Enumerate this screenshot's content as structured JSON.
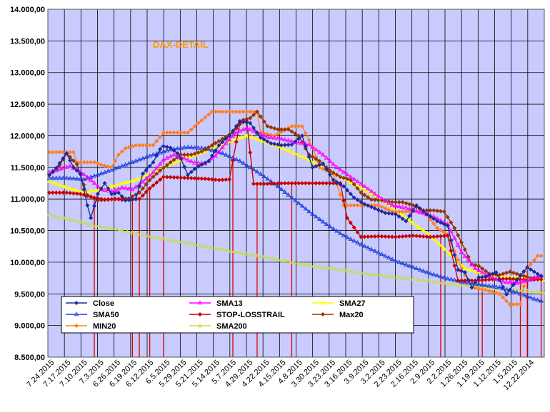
{
  "chart_data": {
    "type": "line",
    "title": "DAX-DETAIL",
    "ylim": [
      8500,
      14000
    ],
    "y_ticks": [
      "14.000,00",
      "13.500,00",
      "13.000,00",
      "12.500,00",
      "12.000,00",
      "11.500,00",
      "11.000,00",
      "10.500,00",
      "10.000,00",
      "9.500,00",
      "9.000,00",
      "8.500,00"
    ],
    "y_tick_values": [
      14000,
      13500,
      13000,
      12500,
      12000,
      11500,
      11000,
      10500,
      10000,
      9500,
      9000,
      8500
    ],
    "x_ticks": [
      "7.24.2015",
      "7.17.2015",
      "7.10.2015",
      "7.3.2015",
      "6.26.2015",
      "6.19.2015",
      "6.12.2015",
      "6.5.2015",
      "5.29.2015",
      "5.21.2015",
      "5.14.2015",
      "5.7.2015",
      "4.29.2015",
      "4.22.2015",
      "4.15.2015",
      "4.8.2015",
      "3.30.2015",
      "3.23.2015",
      "3.16.2015",
      "3.9.2015",
      "3.2.2015",
      "2.23.2015",
      "2.16.2015",
      "2.9.2015",
      "2.2.2015",
      "1.26.2015",
      "1.19.2015",
      "1.12.2015",
      "1.5.2015",
      "12.22.2014"
    ],
    "x_count": 150,
    "grid": true,
    "legend_position": "bottom-left",
    "series": [
      {
        "name": "Close",
        "color": "#1f2a9e",
        "marker": "diamond",
        "keys": [
          [
            0,
            11380
          ],
          [
            4,
            11490
          ],
          [
            10,
            11720
          ],
          [
            14,
            11500
          ],
          [
            18,
            11400
          ],
          [
            22,
            10900
          ],
          [
            24,
            10700
          ],
          [
            28,
            11080
          ],
          [
            32,
            11250
          ],
          [
            36,
            11080
          ],
          [
            40,
            11100
          ],
          [
            44,
            10980
          ],
          [
            50,
            11000
          ],
          [
            54,
            11400
          ],
          [
            60,
            11580
          ],
          [
            65,
            11840
          ],
          [
            70,
            11810
          ],
          [
            75,
            11700
          ],
          [
            80,
            11380
          ],
          [
            85,
            11500
          ],
          [
            92,
            11600
          ],
          [
            98,
            11850
          ],
          [
            104,
            12000
          ],
          [
            110,
            12230
          ],
          [
            116,
            12200
          ],
          [
            122,
            11970
          ],
          [
            128,
            11880
          ],
          [
            134,
            11850
          ],
          [
            140,
            11860
          ],
          [
            146,
            12000
          ],
          [
            152,
            11500
          ],
          [
            158,
            11560
          ],
          [
            164,
            11300
          ],
          [
            170,
            11200
          ],
          [
            176,
            11020
          ],
          [
            182,
            10920
          ],
          [
            188,
            10850
          ],
          [
            194,
            10780
          ],
          [
            200,
            10760
          ],
          [
            206,
            10650
          ],
          [
            212,
            10900
          ],
          [
            218,
            10760
          ],
          [
            224,
            10650
          ],
          [
            230,
            10580
          ],
          [
            236,
            9880
          ],
          [
            240,
            9840
          ],
          [
            244,
            9600
          ],
          [
            248,
            9760
          ],
          [
            252,
            9770
          ],
          [
            258,
            9840
          ],
          [
            264,
            9490
          ],
          [
            270,
            9720
          ],
          [
            276,
            9920
          ],
          [
            280,
            9850
          ],
          [
            285,
            9760
          ]
        ]
      },
      {
        "name": "SMA13",
        "color": "#ff00ff",
        "marker": "triangle",
        "keys": [
          [
            0,
            11420
          ],
          [
            6,
            11470
          ],
          [
            12,
            11520
          ],
          [
            18,
            11430
          ],
          [
            24,
            11300
          ],
          [
            30,
            11150
          ],
          [
            36,
            11120
          ],
          [
            42,
            11180
          ],
          [
            48,
            11150
          ],
          [
            54,
            11270
          ],
          [
            60,
            11420
          ],
          [
            66,
            11620
          ],
          [
            72,
            11700
          ],
          [
            78,
            11640
          ],
          [
            84,
            11570
          ],
          [
            90,
            11560
          ],
          [
            96,
            11680
          ],
          [
            102,
            11880
          ],
          [
            108,
            12050
          ],
          [
            114,
            12120
          ],
          [
            120,
            12050
          ],
          [
            126,
            11980
          ],
          [
            134,
            11950
          ],
          [
            142,
            11900
          ],
          [
            150,
            11860
          ],
          [
            158,
            11700
          ],
          [
            166,
            11500
          ],
          [
            174,
            11350
          ],
          [
            182,
            11200
          ],
          [
            190,
            11040
          ],
          [
            198,
            10900
          ],
          [
            206,
            10860
          ],
          [
            214,
            10790
          ],
          [
            222,
            10720
          ],
          [
            230,
            10600
          ],
          [
            238,
            10160
          ],
          [
            246,
            9900
          ],
          [
            254,
            9780
          ],
          [
            262,
            9690
          ],
          [
            270,
            9670
          ],
          [
            278,
            9730
          ],
          [
            285,
            9800
          ]
        ]
      },
      {
        "name": "SMA27",
        "color": "#ffff00",
        "marker": "triangle",
        "keys": [
          [
            0,
            11280
          ],
          [
            10,
            11180
          ],
          [
            20,
            11100
          ],
          [
            30,
            11150
          ],
          [
            40,
            11230
          ],
          [
            50,
            11300
          ],
          [
            60,
            11420
          ],
          [
            70,
            11550
          ],
          [
            80,
            11660
          ],
          [
            90,
            11750
          ],
          [
            100,
            11860
          ],
          [
            108,
            11950
          ],
          [
            114,
            12000
          ],
          [
            122,
            11930
          ],
          [
            130,
            11850
          ],
          [
            140,
            11740
          ],
          [
            150,
            11620
          ],
          [
            160,
            11460
          ],
          [
            170,
            11320
          ],
          [
            180,
            11180
          ],
          [
            190,
            11020
          ],
          [
            200,
            10820
          ],
          [
            210,
            10620
          ],
          [
            220,
            10420
          ],
          [
            230,
            10160
          ],
          [
            240,
            9900
          ],
          [
            250,
            9820
          ],
          [
            260,
            9760
          ],
          [
            270,
            9760
          ],
          [
            280,
            9740
          ],
          [
            285,
            9720
          ]
        ]
      },
      {
        "name": "SMA50",
        "color": "#1f3fdd",
        "marker": "triangle",
        "keys": [
          [
            0,
            11330
          ],
          [
            10,
            11330
          ],
          [
            20,
            11310
          ],
          [
            30,
            11400
          ],
          [
            40,
            11500
          ],
          [
            50,
            11600
          ],
          [
            60,
            11700
          ],
          [
            70,
            11780
          ],
          [
            80,
            11820
          ],
          [
            90,
            11800
          ],
          [
            100,
            11720
          ],
          [
            110,
            11600
          ],
          [
            120,
            11430
          ],
          [
            130,
            11240
          ],
          [
            140,
            11020
          ],
          [
            150,
            10800
          ],
          [
            160,
            10600
          ],
          [
            170,
            10420
          ],
          [
            180,
            10280
          ],
          [
            190,
            10150
          ],
          [
            200,
            10020
          ],
          [
            210,
            9920
          ],
          [
            220,
            9820
          ],
          [
            230,
            9740
          ],
          [
            240,
            9680
          ],
          [
            250,
            9640
          ],
          [
            260,
            9600
          ],
          [
            270,
            9520
          ],
          [
            280,
            9420
          ],
          [
            285,
            9380
          ]
        ]
      },
      {
        "name": "STOP-LOSSTRAIL",
        "color": "#cc0000",
        "marker": "diamond",
        "keys": [
          [
            0,
            11100
          ],
          [
            10,
            11100
          ],
          [
            18,
            11080
          ],
          [
            26,
            11020
          ],
          [
            32,
            10990
          ],
          [
            38,
            11000
          ],
          [
            44,
            10980
          ],
          [
            52,
            11000
          ],
          [
            58,
            11170
          ],
          [
            66,
            11350
          ],
          [
            74,
            11340
          ],
          [
            82,
            11330
          ],
          [
            90,
            11320
          ],
          [
            98,
            11300
          ],
          [
            104,
            11310
          ],
          [
            110,
            12200
          ],
          [
            114,
            12230
          ],
          [
            118,
            11240
          ],
          [
            126,
            11240
          ],
          [
            136,
            11250
          ],
          [
            146,
            11250
          ],
          [
            156,
            11250
          ],
          [
            162,
            11250
          ],
          [
            168,
            11250
          ],
          [
            172,
            10700
          ],
          [
            180,
            10400
          ],
          [
            190,
            10410
          ],
          [
            200,
            10400
          ],
          [
            210,
            10420
          ],
          [
            220,
            10400
          ],
          [
            230,
            10420
          ],
          [
            236,
            9710
          ],
          [
            246,
            9710
          ],
          [
            256,
            9730
          ],
          [
            266,
            9740
          ],
          [
            276,
            9720
          ],
          [
            285,
            9730
          ]
        ]
      },
      {
        "name": "Max20",
        "color": "#993300",
        "marker": "diamond",
        "keys": [
          [
            0,
            11380
          ],
          [
            5,
            11490
          ],
          [
            10,
            11720
          ],
          [
            16,
            11550
          ],
          [
            22,
            11060
          ],
          [
            28,
            10980
          ],
          [
            34,
            10990
          ],
          [
            40,
            11000
          ],
          [
            46,
            11010
          ],
          [
            52,
            11100
          ],
          [
            58,
            11300
          ],
          [
            64,
            11450
          ],
          [
            70,
            11580
          ],
          [
            76,
            11700
          ],
          [
            82,
            11700
          ],
          [
            88,
            11750
          ],
          [
            94,
            11850
          ],
          [
            100,
            11950
          ],
          [
            106,
            12050
          ],
          [
            112,
            12250
          ],
          [
            116,
            12280
          ],
          [
            120,
            12380
          ],
          [
            126,
            12150
          ],
          [
            132,
            12100
          ],
          [
            138,
            12100
          ],
          [
            144,
            12000
          ],
          [
            150,
            11700
          ],
          [
            156,
            11600
          ],
          [
            162,
            11450
          ],
          [
            168,
            11350
          ],
          [
            174,
            11300
          ],
          [
            180,
            11100
          ],
          [
            186,
            10990
          ],
          [
            192,
            10980
          ],
          [
            198,
            10950
          ],
          [
            204,
            10950
          ],
          [
            210,
            10900
          ],
          [
            216,
            10820
          ],
          [
            222,
            10820
          ],
          [
            228,
            10800
          ],
          [
            234,
            10540
          ],
          [
            240,
            10200
          ],
          [
            244,
            9970
          ],
          [
            248,
            9940
          ],
          [
            254,
            9820
          ],
          [
            260,
            9800
          ],
          [
            266,
            9850
          ],
          [
            272,
            9800
          ],
          [
            278,
            9750
          ],
          [
            285,
            9780
          ]
        ]
      },
      {
        "name": "MIN20",
        "color": "#ff7f27",
        "marker": "diamond",
        "keys": [
          [
            0,
            11740
          ],
          [
            14,
            11740
          ],
          [
            16,
            11580
          ],
          [
            26,
            11580
          ],
          [
            30,
            11540
          ],
          [
            36,
            11500
          ],
          [
            40,
            11700
          ],
          [
            44,
            11800
          ],
          [
            50,
            11850
          ],
          [
            60,
            11850
          ],
          [
            66,
            12050
          ],
          [
            80,
            12050
          ],
          [
            86,
            12200
          ],
          [
            94,
            12380
          ],
          [
            108,
            12380
          ],
          [
            120,
            12380
          ],
          [
            122,
            12050
          ],
          [
            130,
            12000
          ],
          [
            140,
            12150
          ],
          [
            146,
            12150
          ],
          [
            152,
            11820
          ],
          [
            156,
            11500
          ],
          [
            164,
            11400
          ],
          [
            170,
            10900
          ],
          [
            180,
            10900
          ],
          [
            190,
            10900
          ],
          [
            198,
            10800
          ],
          [
            208,
            10800
          ],
          [
            216,
            10820
          ],
          [
            224,
            10540
          ],
          [
            230,
            10440
          ],
          [
            238,
            9900
          ],
          [
            244,
            9600
          ],
          [
            252,
            9560
          ],
          [
            260,
            9500
          ],
          [
            266,
            9330
          ],
          [
            272,
            9340
          ],
          [
            276,
            9900
          ],
          [
            282,
            10100
          ],
          [
            285,
            10100
          ]
        ]
      },
      {
        "name": "SMA200",
        "color": "#c8dc50",
        "marker": "triangle",
        "keys": [
          [
            0,
            10750
          ],
          [
            30,
            10560
          ],
          [
            60,
            10400
          ],
          [
            90,
            10250
          ],
          [
            120,
            10100
          ],
          [
            150,
            9950
          ],
          [
            180,
            9830
          ],
          [
            210,
            9730
          ],
          [
            240,
            9630
          ],
          [
            270,
            9560
          ],
          [
            285,
            9520
          ]
        ]
      }
    ]
  }
}
